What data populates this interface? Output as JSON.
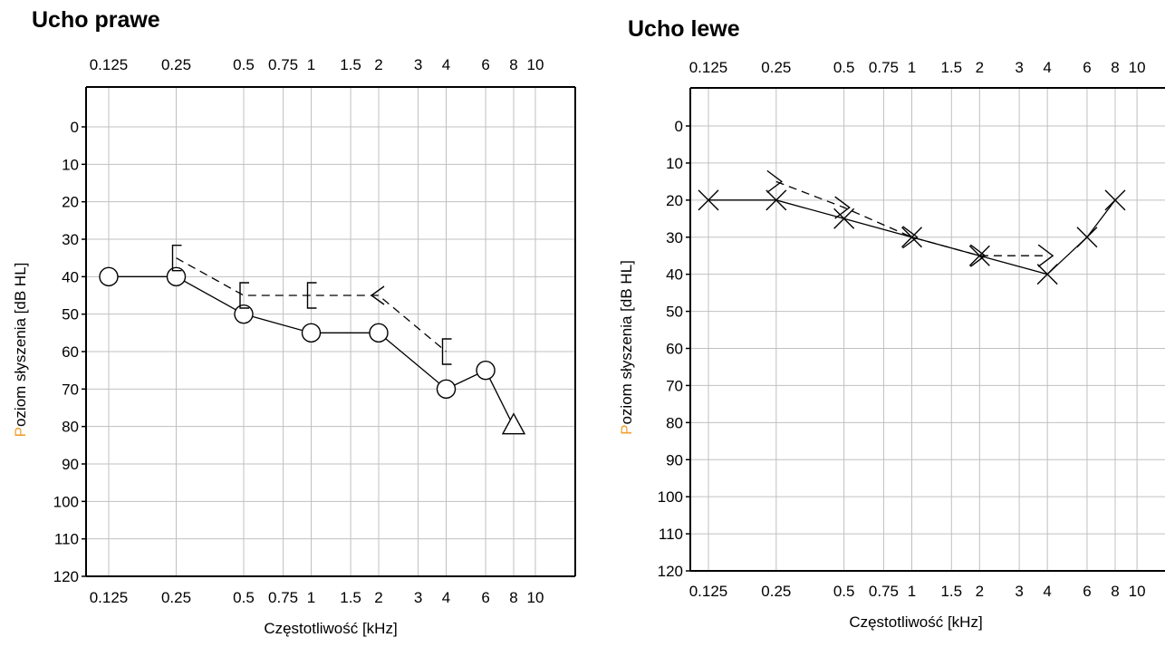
{
  "chart_data": [
    {
      "type": "line",
      "title": "Ucho prawe",
      "xlabel": "Częstotliwość [kHz]",
      "ylabel": "Poziom słyszenia [dB HL]",
      "x_scale": "log",
      "x_ticks": [
        "0.125",
        "0.25",
        "0.5",
        "0.75",
        "1",
        "1.5",
        "2",
        "3",
        "4",
        "6",
        "8",
        "10"
      ],
      "y_ticks": [
        "0",
        "10",
        "20",
        "30",
        "40",
        "50",
        "60",
        "70",
        "80",
        "90",
        "100",
        "110",
        "120"
      ],
      "ylim": [
        120,
        -10
      ],
      "y_inverted": true,
      "grid": true,
      "series": [
        {
          "marker": "circle",
          "line": "solid",
          "points": [
            {
              "x": 0.125,
              "y": 40
            },
            {
              "x": 0.25,
              "y": 40
            },
            {
              "x": 0.5,
              "y": 50
            },
            {
              "x": 1,
              "y": 55
            },
            {
              "x": 2,
              "y": 55
            },
            {
              "x": 4,
              "y": 70
            },
            {
              "x": 6,
              "y": 65
            },
            {
              "x": 8,
              "y": 80
            }
          ],
          "point_markers": [
            "circle",
            "circle",
            "circle",
            "circle",
            "circle",
            "circle",
            "circle",
            "triangle"
          ]
        },
        {
          "marker": "bracket-left",
          "line": "dashed",
          "points": [
            {
              "x": 0.25,
              "y": 35
            },
            {
              "x": 0.5,
              "y": 45
            },
            {
              "x": 1,
              "y": 45
            },
            {
              "x": 2,
              "y": 45
            },
            {
              "x": 4,
              "y": 60
            }
          ],
          "point_markers": [
            "bracket",
            "bracket",
            "bracket",
            "angle-left",
            "bracket"
          ]
        }
      ]
    },
    {
      "type": "line",
      "title": "Ucho lewe",
      "xlabel": "Częstotliwość [kHz]",
      "ylabel": "Poziom słyszenia [dB HL]",
      "x_scale": "log",
      "x_ticks": [
        "0.125",
        "0.25",
        "0.5",
        "0.75",
        "1",
        "1.5",
        "2",
        "3",
        "4",
        "6",
        "8",
        "10"
      ],
      "y_ticks": [
        "0",
        "10",
        "20",
        "30",
        "40",
        "50",
        "60",
        "70",
        "80",
        "90",
        "100",
        "110",
        "120"
      ],
      "ylim": [
        120,
        -10
      ],
      "y_inverted": true,
      "grid": true,
      "series": [
        {
          "marker": "x",
          "line": "solid",
          "points": [
            {
              "x": 0.125,
              "y": 20
            },
            {
              "x": 0.25,
              "y": 20
            },
            {
              "x": 0.5,
              "y": 25
            },
            {
              "x": 1,
              "y": 30
            },
            {
              "x": 2,
              "y": 35
            },
            {
              "x": 4,
              "y": 40
            },
            {
              "x": 6,
              "y": 30
            },
            {
              "x": 8,
              "y": 20
            }
          ]
        },
        {
          "marker": "angle-right",
          "line": "dashed",
          "points": [
            {
              "x": 0.25,
              "y": 15
            },
            {
              "x": 0.5,
              "y": 22
            },
            {
              "x": 1,
              "y": 30
            },
            {
              "x": 2,
              "y": 35
            },
            {
              "x": 4,
              "y": 35
            }
          ]
        }
      ]
    }
  ],
  "colors": {
    "axis": "#000000",
    "grid": "#c0c0c0",
    "ylabel_accent": "#f0a030"
  }
}
